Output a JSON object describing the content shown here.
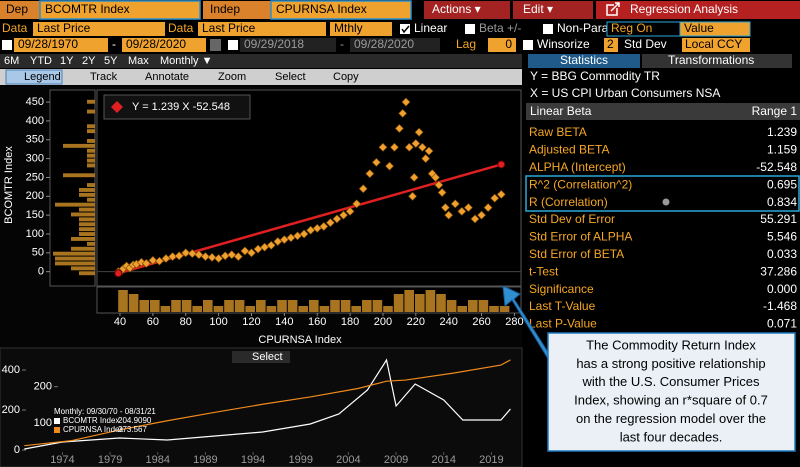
{
  "header": {
    "dep_label": "Dep",
    "dep_value": "BCOMTR Index",
    "indep_label": "Indep",
    "indep_value": "CPURNSA Index",
    "actions": "Actions ▾",
    "edit": "Edit ▾",
    "title": "Regression Analysis"
  },
  "settings": {
    "data_label_1": "Data",
    "data_value_1": "Last Price",
    "data_label_2": "Data",
    "data_value_2": "Last Price",
    "frequency": "Mthly",
    "linear": "Linear",
    "beta": "Beta +/-",
    "non_param": "Non-Param",
    "reg_on": "Reg On",
    "reg_on_value": "Value"
  },
  "ranges": {
    "start_1": "09/28/1970",
    "sep_1": "-",
    "end_1": "09/28/2020",
    "start_2": "09/29/2018",
    "sep_2": "-",
    "end_2": "09/28/2020",
    "lag_label": "Lag",
    "lag_value": "0",
    "winsorize": "Winsorize",
    "winsorize_value": "2",
    "std_dev": "Std Dev",
    "currency": "Local CCY"
  },
  "periods": [
    "6M",
    "YTD",
    "1Y",
    "2Y",
    "5Y",
    "Max",
    "Monthly ▼"
  ],
  "panel_tabs": [
    "Statistics",
    "Transformations"
  ],
  "toolbar": [
    "Legend",
    "Track",
    "Annotate",
    "Zoom",
    "Select",
    "Copy"
  ],
  "stats": {
    "y_desc": "Y = BBG Commodity TR",
    "x_desc": "X = US CPI Urban Consumers NSA",
    "col_method": "Linear Beta",
    "col_range": "Range 1",
    "rows": [
      {
        "label": "Raw BETA",
        "value": 1.239
      },
      {
        "label": "Adjusted BETA",
        "value": 1.159
      },
      {
        "label": "ALPHA (Intercept)",
        "value": -52.548
      },
      {
        "label": "R^2 (Correlation^2)",
        "value": 0.695
      },
      {
        "label": "R (Correlation)",
        "value": 0.834
      },
      {
        "label": "Std Dev of Error",
        "value": 55.291
      },
      {
        "label": "Std Error of ALPHA",
        "value": 5.546
      },
      {
        "label": "Std Error of BETA",
        "value": 0.033
      },
      {
        "label": "t-Test",
        "value": 37.286
      },
      {
        "label": "Significance",
        "value": 0,
        "value_label": "0.000"
      },
      {
        "label": "Last T-Value",
        "value": -1.468
      },
      {
        "label": "Last P-Value",
        "value": 0.071
      }
    ]
  },
  "annotation": {
    "lines": [
      "The Commodity Return Index",
      "has a strong positive relationship",
      "with the U.S. Consumer Prices",
      "Index, showing an r*square of 0.7",
      "on the regression model over the",
      "last four decades."
    ]
  },
  "chart_data": [
    {
      "type": "scatter",
      "equation": "Y = 1.239 X  -52.548",
      "x_label": "CPURNSA Index",
      "y_label": "BCOMTR Index",
      "color": "#f0a030",
      "line_color": "#e02020",
      "xlim": [
        26,
        284
      ],
      "ylim": [
        -38,
        482
      ],
      "xticks": [
        40,
        60,
        80,
        100,
        120,
        140,
        160,
        180,
        200,
        220,
        240,
        260,
        280
      ],
      "yticks": [
        0,
        50,
        100,
        150,
        200,
        250,
        300,
        350,
        400,
        450
      ],
      "x": [
        39,
        40,
        41,
        42,
        44,
        46,
        48,
        50,
        53,
        56,
        60,
        64,
        68,
        72,
        76,
        80,
        84,
        88,
        92,
        96,
        100,
        104,
        108,
        112,
        116,
        120,
        124,
        128,
        132,
        136,
        140,
        144,
        148,
        152,
        156,
        160,
        164,
        168,
        172,
        176,
        180,
        184,
        188,
        192,
        196,
        200,
        204,
        207,
        210,
        212,
        214,
        216,
        218,
        219,
        220,
        222,
        224,
        226,
        228,
        230,
        232,
        234,
        236,
        238,
        240,
        244,
        248,
        252,
        256,
        260,
        264,
        268,
        272
      ],
      "values": [
        0,
        -2,
        3,
        8,
        15,
        10,
        18,
        20,
        25,
        22,
        30,
        28,
        35,
        40,
        42,
        50,
        48,
        45,
        40,
        38,
        35,
        42,
        45,
        40,
        55,
        50,
        60,
        65,
        70,
        80,
        85,
        90,
        95,
        100,
        110,
        115,
        120,
        130,
        140,
        150,
        160,
        180,
        220,
        260,
        290,
        330,
        280,
        330,
        380,
        420,
        450,
        330,
        200,
        250,
        340,
        370,
        330,
        300,
        320,
        260,
        250,
        230,
        210,
        170,
        150,
        180,
        160,
        170,
        140,
        150,
        170,
        195,
        205
      ]
    },
    {
      "type": "line",
      "period": "Monthly: 09/30/70 - 08/31/21",
      "xlim": [
        1968.5,
        2022
      ],
      "xticks": [
        1974,
        1979,
        1984,
        1989,
        1994,
        1999,
        2004,
        2009,
        2014,
        2019
      ],
      "ylim": [
        0,
        500
      ],
      "yticks": [
        0,
        200,
        400
      ],
      "y2lim": [
        0,
        300
      ],
      "y2ticks": [
        100,
        200
      ],
      "series": [
        {
          "name": "BCOMTR Index",
          "value_label": "204.9090",
          "color": "#ffffff",
          "x": [
            1970,
            1974,
            1980,
            1985,
            1990,
            1995,
            2000,
            2003,
            2006,
            2008,
            2009,
            2011,
            2014,
            2016,
            2020,
            2021
          ],
          "values": [
            5,
            40,
            60,
            50,
            70,
            90,
            130,
            180,
            300,
            450,
            220,
            330,
            250,
            150,
            150,
            205
          ]
        },
        {
          "name": "CPURNSA Index",
          "value_label": "273.567",
          "color": "#f08a1c",
          "axis": "y2",
          "x": [
            1970,
            1975,
            1980,
            1985,
            1990,
            1995,
            2000,
            2005,
            2008,
            2010,
            2015,
            2020,
            2021
          ],
          "values": [
            39,
            53,
            82,
            107,
            130,
            152,
            172,
            195,
            215,
            218,
            237,
            259,
            273
          ]
        }
      ]
    }
  ]
}
